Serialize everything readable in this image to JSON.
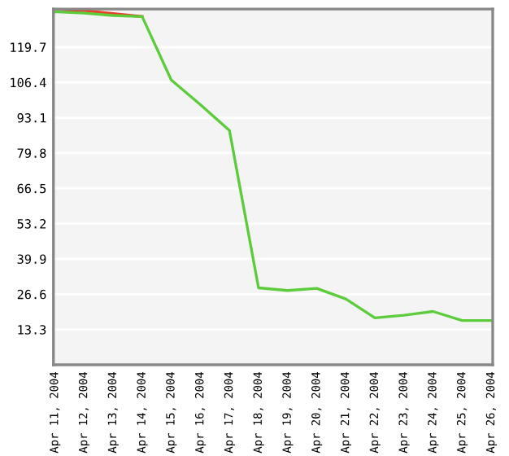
{
  "chart_data": {
    "type": "line",
    "categories": [
      "Apr 11, 2004",
      "Apr 12, 2004",
      "Apr 13, 2004",
      "Apr 14, 2004",
      "Apr 15, 2004",
      "Apr 16, 2004",
      "Apr 17, 2004",
      "Apr 18, 2004",
      "Apr 19, 2004",
      "Apr 20, 2004",
      "Apr 21, 2004",
      "Apr 22, 2004",
      "Apr 23, 2004",
      "Apr 24, 2004",
      "Apr 25, 2004",
      "Apr 26, 2004"
    ],
    "series": [
      {
        "color": "#e8402a",
        "values": [
          133,
          133.5,
          132.3,
          131.2,
          null,
          null,
          null,
          null,
          null,
          null,
          null,
          null,
          null,
          null,
          null,
          null
        ]
      },
      {
        "color": "#5ccc3c",
        "values": [
          133,
          132.5,
          131.6,
          131.2,
          107.3,
          98,
          88.3,
          29,
          28,
          28.8,
          24.8,
          17.7,
          18.7,
          20.1,
          16.7,
          16.7
        ]
      }
    ],
    "ylim": [
      0,
      134
    ],
    "yticks": [
      13.3,
      26.6,
      39.9,
      53.2,
      66.5,
      79.8,
      93.1,
      106.4,
      119.7
    ],
    "grid": "y",
    "legend": false,
    "marker": "none",
    "line_style": "solid"
  }
}
